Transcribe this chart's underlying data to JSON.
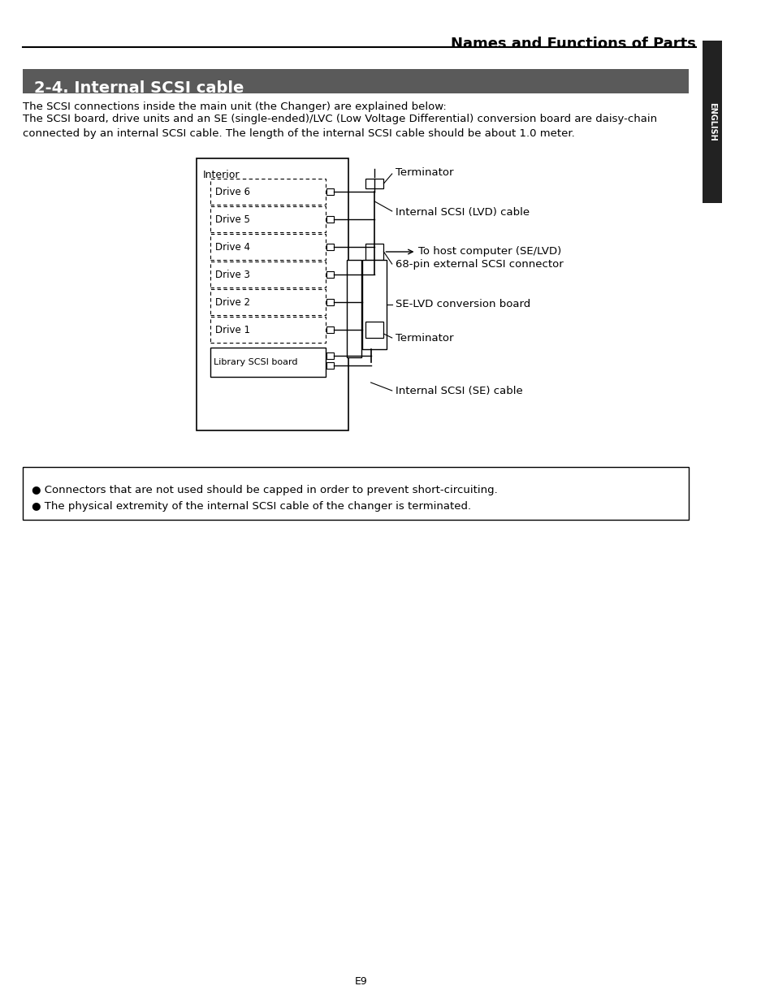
{
  "page_title": "Names and Functions of Parts",
  "section_title": "2-4. Internal SCSI cable",
  "section_bg": "#5a5a5a",
  "section_text_color": "#ffffff",
  "body_text1": "The SCSI connections inside the main unit (the Changer) are explained below:",
  "body_text2": "The SCSI board, drive units and an SE (single-ended)/LVC (Low Voltage Differential) conversion board are daisy-chain\nconnected by an internal SCSI cable. The length of the internal SCSI cable should be about 1.0 meter.",
  "note_bullet1": "● Connectors that are not used should be capped in order to prevent short-circuiting.",
  "note_bullet2": "● The physical extremity of the internal SCSI cable of the changer is terminated.",
  "page_number": "E9",
  "sidebar_text": "ENGLISH",
  "sidebar_bg": "#222222",
  "sidebar_text_color": "#ffffff",
  "drives": [
    "Drive 6",
    "Drive 5",
    "Drive 4",
    "Drive 3",
    "Drive 2",
    "Drive 1"
  ],
  "labels": {
    "interior": "Interior",
    "terminator_top": "Terminator",
    "lvd_cable": "Internal SCSI (LVD) cable",
    "ext_connector": "68-pin external SCSI connector",
    "host_computer": "To host computer (SE/LVD)",
    "se_lvd_board": "SE-LVD conversion board",
    "terminator_bot": "Terminator",
    "library_board": "Library SCSI board",
    "se_cable": "Internal SCSI (SE) cable"
  }
}
